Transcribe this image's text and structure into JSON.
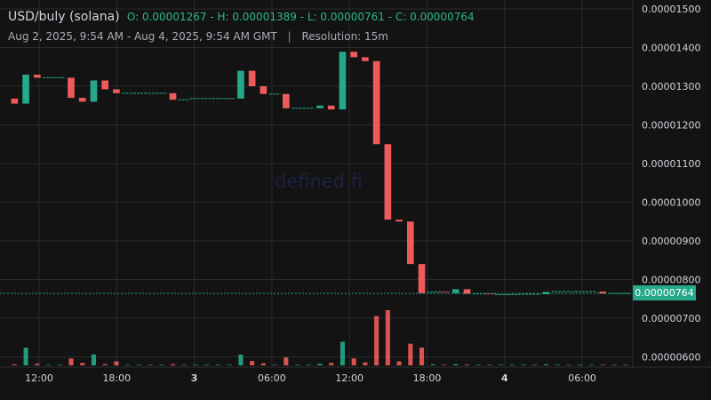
{
  "header": {
    "pair": "USD/buly (solana)",
    "ohlc": "O: 0.00001267 - H: 0.00001389 - L: 0.00000761 - C: 0.00000764",
    "range": "Aug 2, 2025, 9:54 AM - Aug 4, 2025, 9:54 AM GMT",
    "separator": "|",
    "resolution": "Resolution: 15m"
  },
  "watermark": "defined.fi",
  "last_price_label": "0.00000764",
  "colors": {
    "background": "#131313",
    "up": "#26a98a",
    "down": "#ef5b5b",
    "grid": "#2a2a2a",
    "text": "#d1d4dc",
    "last_price": "#26a98a"
  },
  "chart_data": {
    "type": "candlestick",
    "title": "USD/buly (solana)",
    "y_ticks": [
      "0.00000600",
      "0.00000700",
      "0.00000800",
      "0.00000900",
      "0.00001000",
      "0.00001100",
      "0.00001200",
      "0.00001300",
      "0.00001400",
      "0.00001500"
    ],
    "x_ticks": [
      "12:00",
      "18:00",
      "3",
      "06:00",
      "12:00",
      "18:00",
      "4",
      "06:00"
    ],
    "ylim": [
      5.8e-06,
      1.51e-05
    ],
    "last_price": 7.64e-06,
    "grid": true,
    "candles": [
      {
        "o": 1.268e-05,
        "c": 1.255e-05,
        "v": 0.05
      },
      {
        "o": 1.255e-05,
        "c": 1.33e-05,
        "v": 0.9
      },
      {
        "o": 1.33e-05,
        "c": 1.322e-05,
        "v": 0.08
      },
      {
        "o": 1.322e-05,
        "c": 1.322e-05,
        "v": 0.03
      },
      {
        "o": 1.322e-05,
        "c": 1.322e-05,
        "v": 0.03
      },
      {
        "o": 1.322e-05,
        "c": 1.27e-05,
        "v": 0.35
      },
      {
        "o": 1.27e-05,
        "c": 1.26e-05,
        "v": 0.12
      },
      {
        "o": 1.26e-05,
        "c": 1.315e-05,
        "v": 0.55
      },
      {
        "o": 1.315e-05,
        "c": 1.292e-05,
        "v": 0.06
      },
      {
        "o": 1.292e-05,
        "c": 1.282e-05,
        "v": 0.2
      },
      {
        "o": 1.282e-05,
        "c": 1.282e-05,
        "v": 0.03
      },
      {
        "o": 1.282e-05,
        "c": 1.282e-05,
        "v": 0.03
      },
      {
        "o": 1.282e-05,
        "c": 1.282e-05,
        "v": 0.03
      },
      {
        "o": 1.282e-05,
        "c": 1.282e-05,
        "v": 0.03
      },
      {
        "o": 1.282e-05,
        "c": 1.265e-05,
        "v": 0.06
      },
      {
        "o": 1.265e-05,
        "c": 1.265e-05,
        "v": 0.03
      },
      {
        "o": 1.265e-05,
        "c": 1.268e-05,
        "v": 0.03
      },
      {
        "o": 1.268e-05,
        "c": 1.268e-05,
        "v": 0.03
      },
      {
        "o": 1.268e-05,
        "c": 1.268e-05,
        "v": 0.03
      },
      {
        "o": 1.268e-05,
        "c": 1.268e-05,
        "v": 0.03
      },
      {
        "o": 1.268e-05,
        "c": 1.34e-05,
        "v": 0.55
      },
      {
        "o": 1.34e-05,
        "c": 1.3e-05,
        "v": 0.22
      },
      {
        "o": 1.3e-05,
        "c": 1.28e-05,
        "v": 0.1
      },
      {
        "o": 1.28e-05,
        "c": 1.28e-05,
        "v": 0.03
      },
      {
        "o": 1.28e-05,
        "c": 1.243e-05,
        "v": 0.4
      },
      {
        "o": 1.243e-05,
        "c": 1.243e-05,
        "v": 0.03
      },
      {
        "o": 1.243e-05,
        "c": 1.243e-05,
        "v": 0.03
      },
      {
        "o": 1.243e-05,
        "c": 1.25e-05,
        "v": 0.08
      },
      {
        "o": 1.25e-05,
        "c": 1.24e-05,
        "v": 0.12
      },
      {
        "o": 1.24e-05,
        "c": 1.389e-05,
        "v": 1.2
      },
      {
        "o": 1.389e-05,
        "c": 1.375e-05,
        "v": 0.35
      },
      {
        "o": 1.375e-05,
        "c": 1.365e-05,
        "v": 0.15
      },
      {
        "o": 1.365e-05,
        "c": 1.15e-05,
        "v": 2.5
      },
      {
        "o": 1.15e-05,
        "c": 9.55e-06,
        "v": 2.8
      },
      {
        "o": 9.55e-06,
        "c": 9.5e-06,
        "v": 0.2
      },
      {
        "o": 9.5e-06,
        "c": 8.4e-06,
        "v": 1.1
      },
      {
        "o": 8.4e-06,
        "c": 7.65e-06,
        "v": 0.9
      },
      {
        "o": 7.65e-06,
        "c": 7.68e-06,
        "v": 0.05
      },
      {
        "o": 7.68e-06,
        "c": 7.65e-06,
        "v": 0.03
      },
      {
        "o": 7.65e-06,
        "c": 7.75e-06,
        "v": 0.06
      },
      {
        "o": 7.75e-06,
        "c": 7.63e-06,
        "v": 0.04
      },
      {
        "o": 7.63e-06,
        "c": 7.63e-06,
        "v": 0.03
      },
      {
        "o": 7.63e-06,
        "c": 7.61e-06,
        "v": 0.03
      },
      {
        "o": 7.61e-06,
        "c": 7.61e-06,
        "v": 0.03
      },
      {
        "o": 7.61e-06,
        "c": 7.61e-06,
        "v": 0.03
      },
      {
        "o": 7.61e-06,
        "c": 7.62e-06,
        "v": 0.03
      },
      {
        "o": 7.62e-06,
        "c": 7.62e-06,
        "v": 0.03
      },
      {
        "o": 7.62e-06,
        "c": 7.68e-06,
        "v": 0.05
      },
      {
        "o": 7.68e-06,
        "c": 7.69e-06,
        "v": 0.03
      },
      {
        "o": 7.69e-06,
        "c": 7.69e-06,
        "v": 0.03
      },
      {
        "o": 7.69e-06,
        "c": 7.69e-06,
        "v": 0.03
      },
      {
        "o": 7.69e-06,
        "c": 7.69e-06,
        "v": 0.03
      },
      {
        "o": 7.69e-06,
        "c": 7.64e-06,
        "v": 0.03
      },
      {
        "o": 7.64e-06,
        "c": 7.64e-06,
        "v": 0.03
      },
      {
        "o": 7.64e-06,
        "c": 7.64e-06,
        "v": 0.03
      }
    ]
  }
}
